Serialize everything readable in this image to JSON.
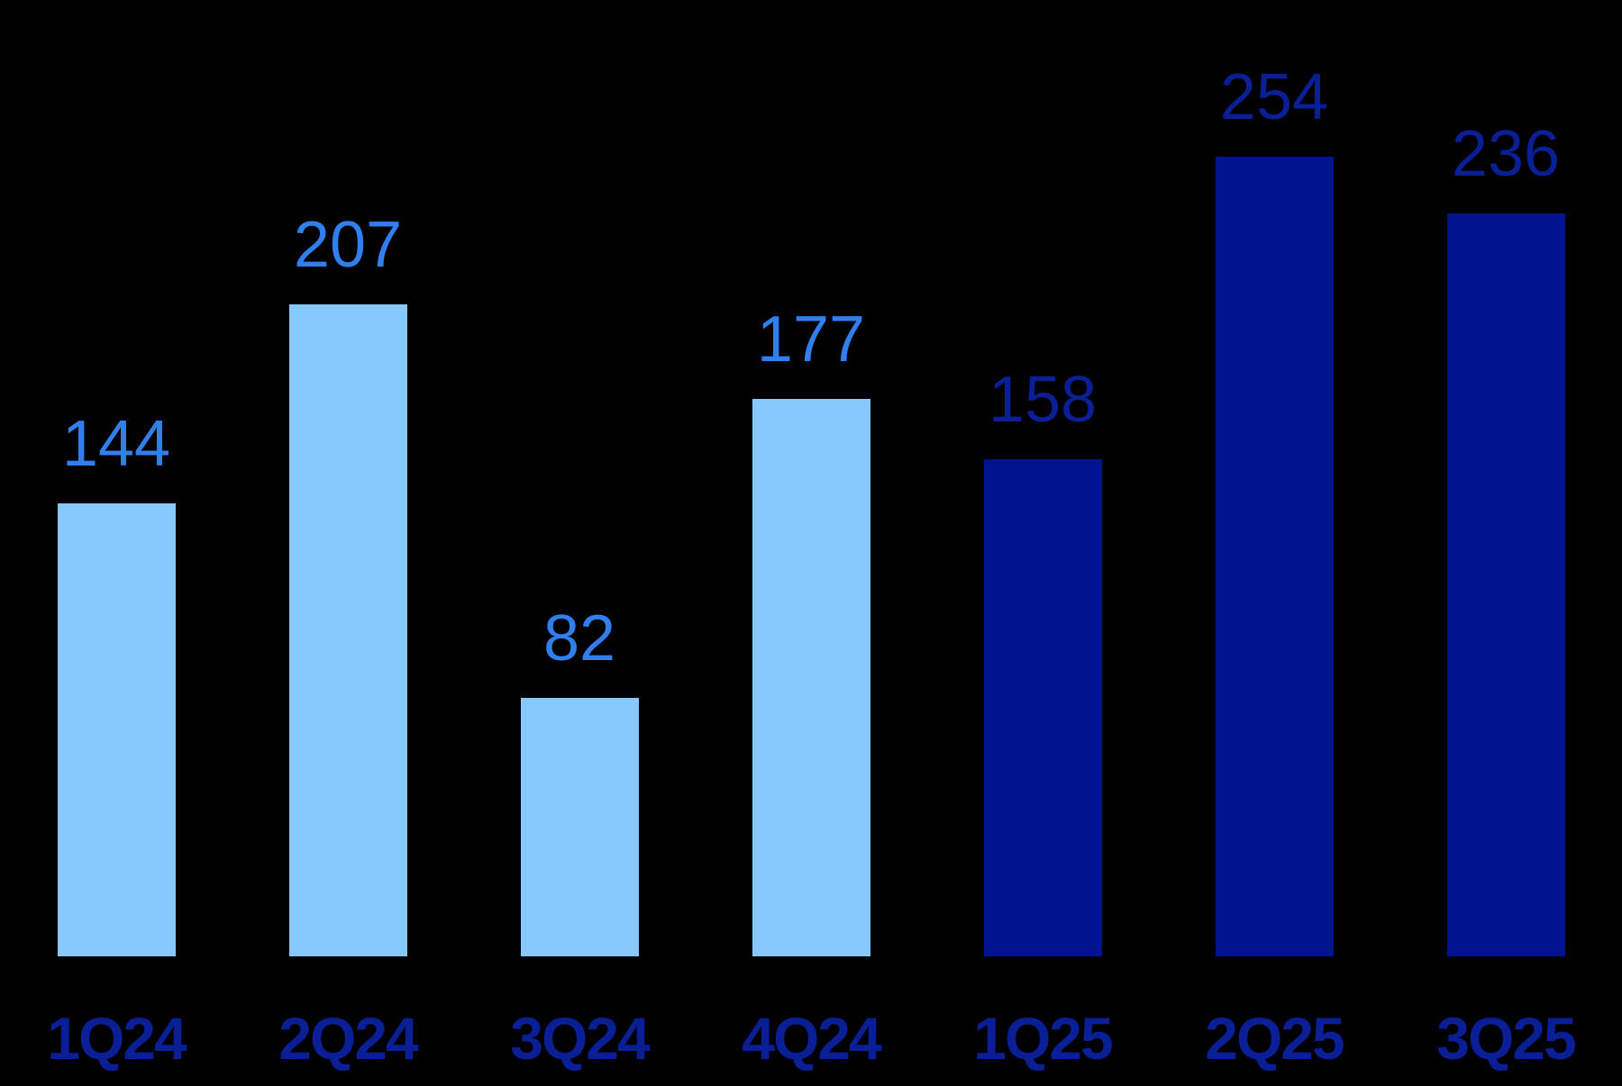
{
  "chart_data": {
    "type": "bar",
    "title": "",
    "xlabel": "",
    "ylabel": "",
    "categories": [
      "1Q24",
      "2Q24",
      "3Q24",
      "4Q24",
      "1Q25",
      "2Q25",
      "3Q25"
    ],
    "values": [
      144,
      207,
      82,
      177,
      158,
      254,
      236
    ],
    "ylim": [
      0,
      254
    ],
    "grid": false,
    "legend": null,
    "colors": {
      "bar_2024": "#87C8FF",
      "bar_2025": "#00148F",
      "label_2024": "#2F7FEF",
      "label_2025": "#0A1E96",
      "category_label": "#0A1E96",
      "background": "#000000"
    }
  }
}
